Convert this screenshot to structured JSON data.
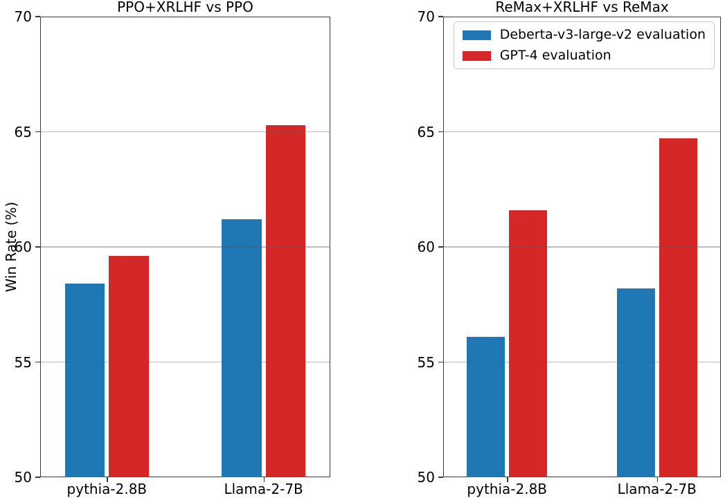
{
  "figure": {
    "background": "#ffffff",
    "grid_color": "#b0b0b0",
    "spine_color": "#3a3a3a",
    "text_color": "#000000"
  },
  "chart_data": [
    {
      "type": "bar",
      "title": "PPO+XRLHF vs PPO",
      "ylabel": "Win Rate (%)",
      "xlabel": "",
      "categories": [
        "pythia-2.8B",
        "Llama-2-7B"
      ],
      "series": [
        {
          "name": "Deberta-v3-large-v2 evaluation",
          "color": "#1f77b4",
          "values": [
            58.4,
            61.2
          ]
        },
        {
          "name": "GPT-4 evaluation",
          "color": "#d62728",
          "values": [
            59.6,
            65.3
          ]
        }
      ],
      "ylim": [
        50,
        70
      ],
      "yticks": [
        50,
        55,
        60,
        65,
        70
      ],
      "grid": true,
      "legend": false
    },
    {
      "type": "bar",
      "title": "ReMax+XRLHF vs ReMax",
      "ylabel": "",
      "xlabel": "",
      "categories": [
        "pythia-2.8B",
        "Llama-2-7B"
      ],
      "series": [
        {
          "name": "Deberta-v3-large-v2 evaluation",
          "color": "#1f77b4",
          "values": [
            56.1,
            58.2
          ]
        },
        {
          "name": "GPT-4 evaluation",
          "color": "#d62728",
          "values": [
            61.6,
            64.7
          ]
        }
      ],
      "ylim": [
        50,
        70
      ],
      "yticks": [
        50,
        55,
        60,
        65,
        70
      ],
      "grid": true,
      "legend": true,
      "legend_position": "upper right"
    }
  ]
}
